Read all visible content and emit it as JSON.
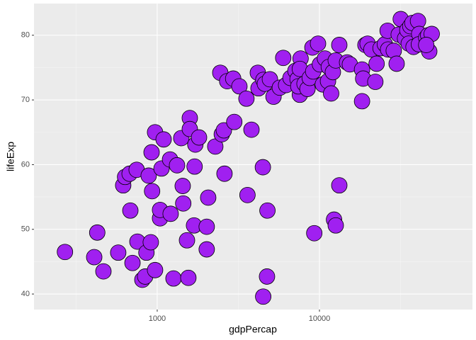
{
  "chart_data": {
    "type": "scatter",
    "xlabel": "gdpPercap",
    "ylabel": "lifeExp",
    "xscale": "log",
    "xlim": [
      174,
      87700
    ],
    "ylim": [
      37.6,
      84.9
    ],
    "xticks": [
      1000,
      10000
    ],
    "yticks": [
      40,
      50,
      60,
      70,
      80
    ],
    "xminor": [
      316.2,
      3162,
      31623
    ],
    "yminor": [
      45,
      55,
      65,
      75
    ],
    "grid": true,
    "color": "#a020f0",
    "edgecolor": "#000000",
    "x": [
      270,
      409,
      427,
      466,
      575,
      617,
      634,
      676,
      683,
      704,
      747,
      755,
      810,
      843,
      858,
      886,
      913,
      923,
      930,
      970,
      970,
      1041,
      1041,
      1063,
      1095,
      1200,
      1210,
      1260,
      1325,
      1407,
      1436,
      1447,
      1526,
      1556,
      1588,
      1588,
      1686,
      1700,
      1718,
      1810,
      2019,
      2019,
      2062,
      2280,
      2500,
      2575,
      2598,
      2448,
      2700,
      2940,
      2985,
      3210,
      3547,
      3600,
      3810,
      4170,
      4210,
      4510,
      4480,
      4500,
      4750,
      4780,
      4610,
      4950,
      5210,
      5700,
      5980,
      6230,
      6630,
      7110,
      7330,
      7570,
      7650,
      7570,
      7410,
      8090,
      8440,
      8710,
      9050,
      9150,
      9290,
      9800,
      10070,
      10490,
      10810,
      11290,
      11420,
      11800,
      12100,
      12300,
      12600,
      13250,
      13250,
      12600,
      14800,
      15400,
      18300,
      18300,
      18600,
      19200,
      19800,
      20900,
      22500,
      22100,
      23800,
      25300,
      26300,
      26500,
      28700,
      29900,
      30800,
      31700,
      33700,
      34800,
      35500,
      36300,
      37400,
      38000,
      40500,
      41200,
      41000,
      45500,
      46800,
      47500,
      49200,
      45500
    ],
    "values": [
      46.5,
      45.7,
      49.5,
      43.5,
      46.4,
      56.8,
      58.1,
      58.6,
      52.9,
      44.8,
      59.2,
      48.1,
      42.2,
      42.7,
      46.4,
      58.3,
      48.0,
      61.9,
      55.9,
      65.0,
      43.7,
      51.7,
      53.0,
      59.4,
      63.9,
      60.8,
      52.4,
      42.4,
      59.9,
      64.1,
      56.7,
      54.0,
      48.3,
      42.5,
      67.2,
      65.5,
      50.6,
      59.7,
      63.1,
      64.2,
      50.4,
      46.9,
      54.9,
      62.8,
      64.7,
      65.3,
      58.6,
      74.2,
      72.9,
      73.3,
      66.6,
      72.1,
      70.2,
      55.3,
      65.4,
      74.2,
      71.8,
      73.1,
      59.6,
      39.6,
      42.7,
      52.9,
      72.5,
      73.2,
      70.5,
      71.9,
      76.5,
      72.3,
      73.4,
      74.5,
      73.2,
      70.8,
      76.4,
      74.8,
      72.1,
      72.5,
      71.7,
      73.4,
      78.1,
      74.4,
      49.4,
      78.7,
      75.5,
      72.4,
      76.4,
      72.9,
      75.1,
      71.0,
      74.3,
      51.5,
      50.6,
      56.8,
      78.5,
      76.1,
      75.8,
      75.5,
      74.7,
      69.8,
      73.3,
      78.5,
      78.7,
      77.8,
      75.6,
      72.8,
      78.0,
      78.6,
      80.7,
      77.8,
      77.6,
      75.6,
      80.1,
      82.5,
      79.5,
      80.8,
      78.7,
      81.4,
      81.9,
      78.2,
      82.2,
      80.2,
      78.6,
      79.6,
      80.0,
      77.5,
      80.2,
      78.5
    ]
  }
}
